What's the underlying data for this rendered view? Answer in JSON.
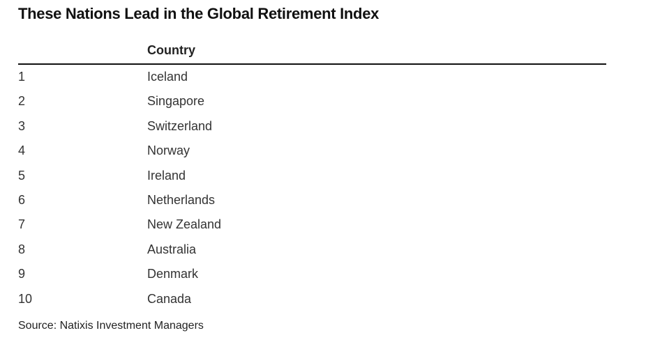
{
  "title": "These Nations Lead in the Global Retirement Index",
  "table": {
    "columns": [
      "Country"
    ],
    "rows": [
      [
        1,
        "Iceland"
      ],
      [
        2,
        "Singapore"
      ],
      [
        3,
        "Switzerland"
      ],
      [
        4,
        "Norway"
      ],
      [
        5,
        "Ireland"
      ],
      [
        6,
        "Netherlands"
      ],
      [
        7,
        "New Zealand"
      ],
      [
        8,
        "Australia"
      ],
      [
        9,
        "Denmark"
      ],
      [
        10,
        "Canada"
      ]
    ]
  },
  "source": "Source: Natixis Investment Managers"
}
